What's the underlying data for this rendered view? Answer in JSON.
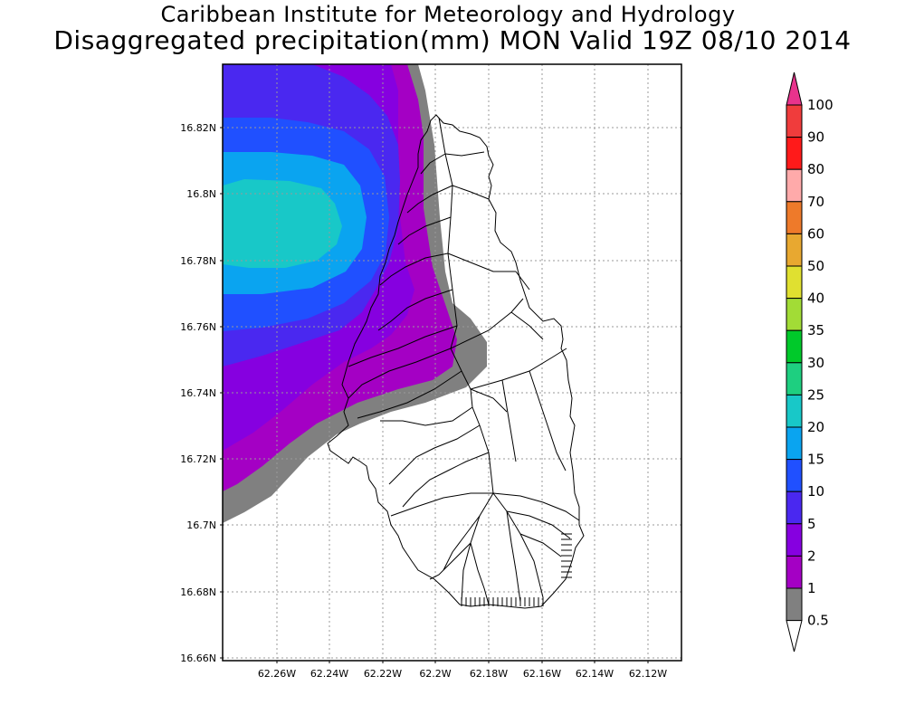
{
  "title": {
    "line1": "Caribbean Institute for Meteorology and Hydrology",
    "line2": "Disaggregated precipitation(mm) MON Valid 19Z 08/10 2014"
  },
  "axes": {
    "lat_ticks": [
      "16.82N",
      "16.8N",
      "16.78N",
      "16.76N",
      "16.74N",
      "16.72N",
      "16.7N",
      "16.68N",
      "16.66N"
    ],
    "lon_ticks": [
      "62.26W",
      "62.24W",
      "62.22W",
      "62.2W",
      "62.18W",
      "62.16W",
      "62.14W",
      "62.12W"
    ]
  },
  "legend": {
    "levels": [
      {
        "label": "100",
        "color": "#e8338c"
      },
      {
        "label": "90",
        "color": "#f03c3c"
      },
      {
        "label": "80",
        "color": "#ff1a1a"
      },
      {
        "label": "70",
        "color": "#ffaaaa"
      },
      {
        "label": "60",
        "color": "#ee7a2a"
      },
      {
        "label": "50",
        "color": "#e8a830"
      },
      {
        "label": "40",
        "color": "#e0e030"
      },
      {
        "label": "35",
        "color": "#a2dc36"
      },
      {
        "label": "30",
        "color": "#00c92a"
      },
      {
        "label": "25",
        "color": "#1ecf80"
      },
      {
        "label": "20",
        "color": "#18c8c8"
      },
      {
        "label": "15",
        "color": "#0aa4f0"
      },
      {
        "label": "10",
        "color": "#2050ff"
      },
      {
        "label": "5",
        "color": "#4a28f0"
      },
      {
        "label": "2",
        "color": "#8600e0"
      },
      {
        "label": "1",
        "color": "#a400c4"
      },
      {
        "label": "0.5",
        "color": "#808080"
      }
    ]
  },
  "colors": {
    "background": "#ffffff",
    "grey": "#808080",
    "purple1": "#a400c4",
    "purple2": "#8600e0",
    "violet": "#4a28f0",
    "blue": "#2050ff",
    "lightblue": "#0aa4f0",
    "cyan": "#18c8c8"
  }
}
